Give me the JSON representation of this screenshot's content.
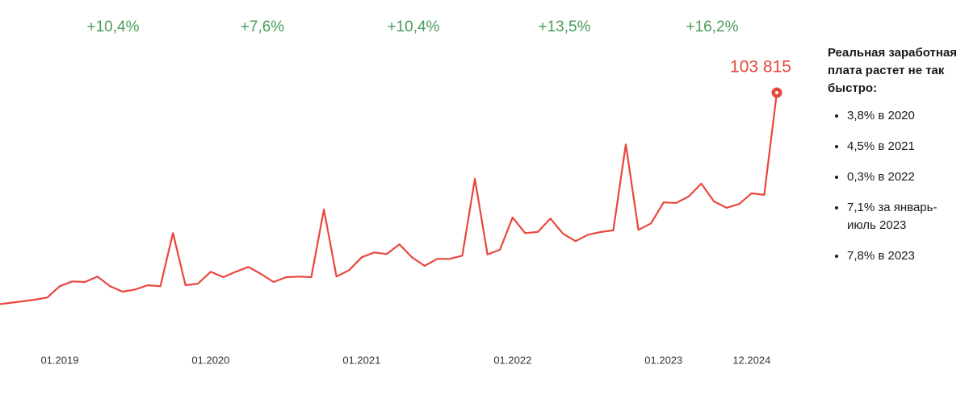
{
  "chart_data": {
    "type": "line",
    "annotations": [
      "+10,4%",
      "+7,6%",
      "+10,4%",
      "+13,5%",
      "+16,2%"
    ],
    "categories": [
      null,
      null,
      null,
      null,
      null,
      "01.2019",
      null,
      null,
      null,
      null,
      null,
      null,
      null,
      null,
      null,
      null,
      null,
      "01.2020",
      null,
      null,
      null,
      null,
      null,
      null,
      null,
      null,
      null,
      null,
      null,
      "01.2021",
      null,
      null,
      null,
      null,
      null,
      null,
      null,
      null,
      null,
      null,
      null,
      "01.2022",
      null,
      null,
      null,
      null,
      null,
      null,
      null,
      null,
      null,
      null,
      null,
      "01.2023",
      null,
      null,
      null,
      null,
      null,
      null,
      "12.2024",
      null,
      null
    ],
    "series": [
      {
        "color": "#e8473c",
        "values": [
          64400,
          64700,
          65000,
          65300,
          65700,
          67800,
          68700,
          68600,
          69600,
          67800,
          66800,
          67200,
          68000,
          67800,
          77700,
          68000,
          68300,
          70500,
          69500,
          70500,
          71400,
          70100,
          68600,
          69500,
          69600,
          69500,
          82100,
          69600,
          70800,
          73200,
          74100,
          73800,
          75600,
          73200,
          71600,
          72900,
          72900,
          73500,
          87800,
          73700,
          74600,
          80600,
          77700,
          77900,
          80400,
          77600,
          76200,
          77400,
          77900,
          78200,
          94200,
          78300,
          79500,
          83400,
          83300,
          84500,
          86900,
          83600,
          82400,
          83100,
          85100,
          84800,
          103815
        ],
        "value_labels": {
          "62": "103 815"
        }
      }
    ],
    "sidebar": {
      "title": "Реальная заработная плата растет не так быстро:",
      "items": [
        "3,8% в 2020",
        "4,5% в 2021",
        "0,3% в 2022",
        "7,1% за январь-июль 2023",
        "7,8% в 2023"
      ]
    }
  }
}
